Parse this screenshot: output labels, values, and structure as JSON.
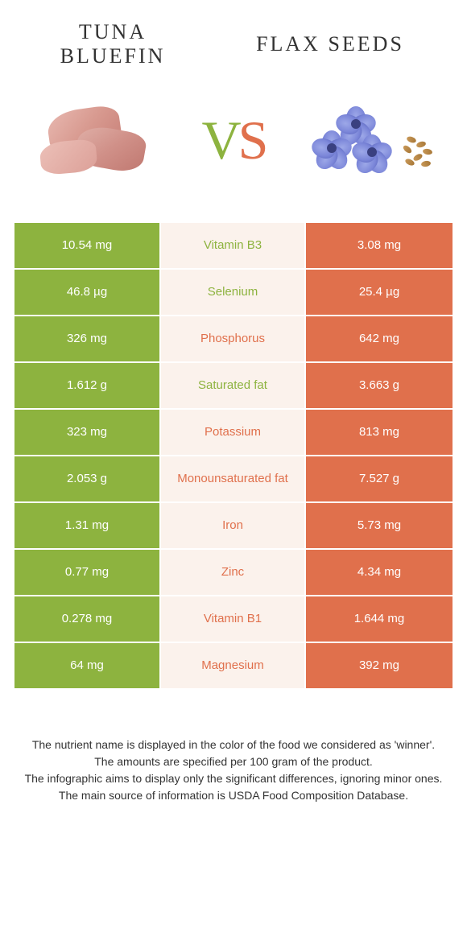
{
  "header": {
    "food_left": "Tuna Bluefin",
    "food_right": "Flax seeds",
    "vs_v": "V",
    "vs_s": "S"
  },
  "colors": {
    "green": "#8db33f",
    "orange": "#e0704c",
    "mid_bg": "#fbf2ec",
    "white": "#ffffff"
  },
  "table": {
    "rows": [
      {
        "left": "10.54 mg",
        "label": "Vitamin B3",
        "right": "3.08 mg",
        "winner": "left"
      },
      {
        "left": "46.8 µg",
        "label": "Selenium",
        "right": "25.4 µg",
        "winner": "left"
      },
      {
        "left": "326 mg",
        "label": "Phosphorus",
        "right": "642 mg",
        "winner": "right"
      },
      {
        "left": "1.612 g",
        "label": "Saturated fat",
        "right": "3.663 g",
        "winner": "left"
      },
      {
        "left": "323 mg",
        "label": "Potassium",
        "right": "813 mg",
        "winner": "right"
      },
      {
        "left": "2.053 g",
        "label": "Monounsaturated fat",
        "right": "7.527 g",
        "winner": "right"
      },
      {
        "left": "1.31 mg",
        "label": "Iron",
        "right": "5.73 mg",
        "winner": "right"
      },
      {
        "left": "0.77 mg",
        "label": "Zinc",
        "right": "4.34 mg",
        "winner": "right"
      },
      {
        "left": "0.278 mg",
        "label": "Vitamin B1",
        "right": "1.644 mg",
        "winner": "right"
      },
      {
        "left": "64 mg",
        "label": "Magnesium",
        "right": "392 mg",
        "winner": "right"
      }
    ]
  },
  "footer": {
    "line1": "The nutrient name is displayed in the color of the food we considered as 'winner'.",
    "line2": "The amounts are specified per 100 gram of the product.",
    "line3": "The infographic aims to display only the significant differences, ignoring minor ones.",
    "line4": "The main source of information is USDA Food Composition Database."
  }
}
